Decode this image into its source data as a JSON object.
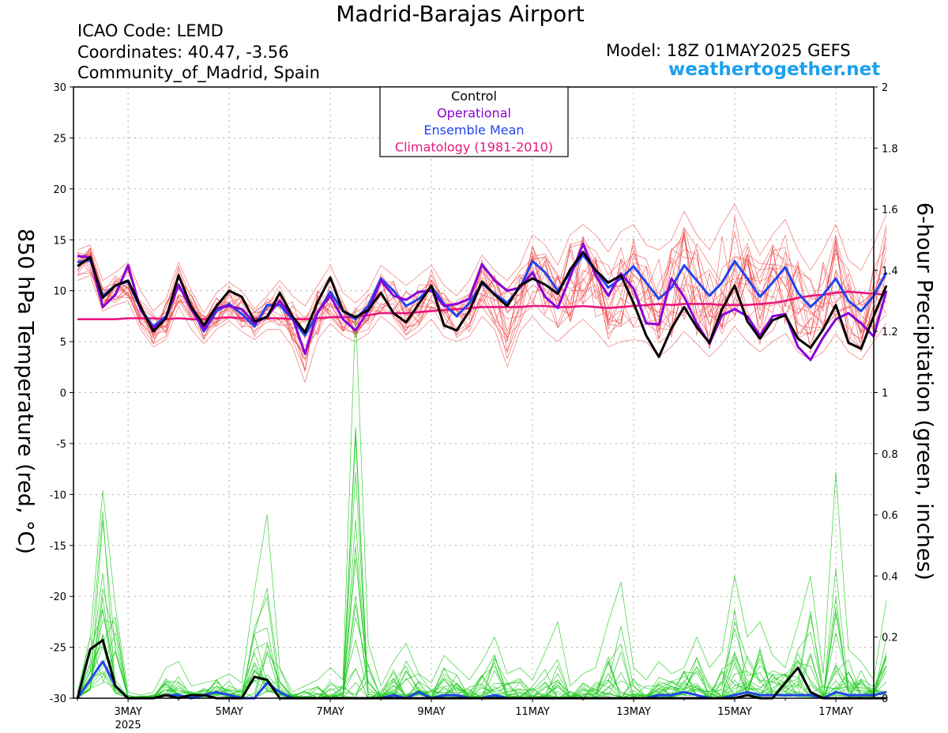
{
  "header": {
    "title": "Madrid-Barajas Airport",
    "icao": "ICAO Code: LEMD",
    "coordinates": "Coordinates: 40.47, -3.56",
    "region": "Community_of_Madrid, Spain",
    "model": "Model: 18Z 01MAY2025 GEFS",
    "website": "weathertogether.net"
  },
  "colors": {
    "control": "#000000",
    "operational": "#8a00d6",
    "ensemble_mean": "#2244ee",
    "climatology": "#e8157f",
    "temp_members": "#ee4444",
    "precip_members": "#22cc22",
    "website": "#1ba0ee",
    "grid": "#aaaaaa"
  },
  "chart_data": {
    "type": "line",
    "xlabel": "",
    "ylabel": "850 hPa Temperature (red, °C)",
    "ylabel_right": "6-hour Precipitation (green, inches)",
    "x_tick_labels": [
      "3MAY",
      "5MAY",
      "7MAY",
      "9MAY",
      "11MAY",
      "13MAY",
      "15MAY",
      "17MAY"
    ],
    "x_subtitle": "2025",
    "xlim_days": [
      1.92,
      17.75
    ],
    "ylim": [
      -30,
      30
    ],
    "yticks": [
      -30,
      -25,
      -20,
      -15,
      -10,
      -5,
      0,
      5,
      10,
      15,
      20,
      25,
      30
    ],
    "ylim_right": [
      0,
      2
    ],
    "yticks_right": [
      0,
      0.2,
      0.4,
      0.6,
      0.8,
      1,
      1.2,
      1.4,
      1.6,
      1.8,
      2
    ],
    "grid": true,
    "legend_position": "top-center",
    "legend": [
      "Control",
      "Operational",
      "Ensemble Mean",
      "Climatology (1981-2010)"
    ],
    "time_step_hours": 6,
    "x_start_day": 2.0,
    "temperature": {
      "control": [
        12.4,
        13.3,
        9.3,
        10.5,
        11.0,
        8.4,
        6.0,
        7.3,
        11.5,
        8.4,
        6.6,
        8.5,
        10.0,
        9.4,
        7.0,
        7.4,
        9.8,
        7.5,
        5.9,
        8.9,
        11.3,
        8.0,
        7.4,
        8.1,
        9.8,
        7.8,
        6.9,
        8.7,
        10.5,
        6.6,
        6.1,
        8.0,
        10.9,
        9.6,
        8.5,
        10.5,
        11.2,
        10.6,
        9.7,
        12.1,
        13.8,
        12.0,
        10.8,
        11.5,
        8.8,
        5.6,
        3.5,
        6.3,
        8.4,
        6.4,
        4.9,
        8.2,
        10.5,
        7.0,
        5.3,
        7.1,
        7.6,
        5.3,
        4.4,
        6.2,
        8.6,
        4.9,
        4.3,
        7.5,
        10.5
      ],
      "operational": [
        13.4,
        13.3,
        8.4,
        9.6,
        12.5,
        8.1,
        6.3,
        7.3,
        10.6,
        8.2,
        6.2,
        8.3,
        8.5,
        8.2,
        6.8,
        7.5,
        9.0,
        7.4,
        3.8,
        7.9,
        9.5,
        7.2,
        6.1,
        8.0,
        11.0,
        9.5,
        9.1,
        9.9,
        10.0,
        8.5,
        8.7,
        9.2,
        12.6,
        11.0,
        10.0,
        10.3,
        11.8,
        9.4,
        8.3,
        11.4,
        14.6,
        11.5,
        9.5,
        11.7,
        10.2,
        6.8,
        6.7,
        11.2,
        9.4,
        6.8,
        4.8,
        7.6,
        8.2,
        7.5,
        5.6,
        7.5,
        7.7,
        4.5,
        3.2,
        5.4,
        7.2,
        7.8,
        6.8,
        5.5,
        10.0
      ],
      "ensemble_mean": [
        12.8,
        13.0,
        9.5,
        10.5,
        10.9,
        8.2,
        6.5,
        7.5,
        10.5,
        8.4,
        6.0,
        8.0,
        8.7,
        7.7,
        6.5,
        8.6,
        8.6,
        7.2,
        5.6,
        7.8,
        9.9,
        8.0,
        7.2,
        8.5,
        11.2,
        10.0,
        8.5,
        9.2,
        10.4,
        8.7,
        7.5,
        8.8,
        10.7,
        9.7,
        8.8,
        10.3,
        12.9,
        11.8,
        10.0,
        11.8,
        13.5,
        12.0,
        10.3,
        11.2,
        12.4,
        10.8,
        9.2,
        10.3,
        12.5,
        11.0,
        9.5,
        10.8,
        12.9,
        11.2,
        9.4,
        10.8,
        12.3,
        9.8,
        8.4,
        9.6,
        11.2,
        9.0,
        8.0,
        9.5,
        11.8
      ],
      "climatology": [
        7.2,
        7.2,
        7.2,
        7.2,
        7.3,
        7.3,
        7.3,
        7.2,
        7.3,
        7.2,
        7.2,
        7.3,
        7.4,
        7.3,
        7.3,
        7.3,
        7.3,
        7.2,
        7.2,
        7.3,
        7.4,
        7.4,
        7.4,
        7.6,
        7.8,
        7.8,
        7.8,
        7.9,
        8.0,
        8.1,
        8.2,
        8.3,
        8.4,
        8.4,
        8.4,
        8.4,
        8.5,
        8.5,
        8.4,
        8.4,
        8.5,
        8.4,
        8.3,
        8.4,
        8.5,
        8.6,
        8.7,
        8.6,
        8.7,
        8.7,
        8.7,
        8.6,
        8.6,
        8.6,
        8.7,
        8.8,
        9.0,
        9.3,
        9.5,
        9.6,
        9.8,
        9.9,
        9.8,
        9.7,
        9.6
      ],
      "members_min": [
        11.0,
        11.5,
        8.0,
        8.6,
        9.0,
        6.2,
        4.5,
        5.2,
        8.5,
        6.2,
        4.8,
        6.2,
        7.0,
        6.0,
        5.2,
        6.2,
        6.2,
        4.5,
        1.0,
        5.2,
        6.8,
        5.6,
        5.0,
        5.8,
        7.5,
        6.5,
        5.2,
        6.0,
        7.2,
        5.5,
        5.0,
        5.5,
        7.5,
        6.2,
        2.5,
        6.0,
        7.5,
        6.0,
        5.0,
        6.2,
        7.2,
        6.0,
        4.5,
        5.0,
        5.2,
        5.0,
        3.5,
        4.5,
        6.0,
        4.8,
        3.5,
        4.8,
        6.5,
        5.0,
        4.0,
        5.0,
        5.8,
        4.0,
        3.2,
        4.0,
        5.8,
        4.0,
        3.2,
        5.0,
        6.8
      ],
      "members_max": [
        14.0,
        14.5,
        11.0,
        11.8,
        12.8,
        10.0,
        8.0,
        9.2,
        12.8,
        10.0,
        7.8,
        9.8,
        10.8,
        10.0,
        8.2,
        9.5,
        11.0,
        9.5,
        8.5,
        10.5,
        12.5,
        9.8,
        8.8,
        10.0,
        12.5,
        11.5,
        10.5,
        11.5,
        12.5,
        10.5,
        9.5,
        11.0,
        13.5,
        12.0,
        11.0,
        12.5,
        15.5,
        14.5,
        12.5,
        15.5,
        16.5,
        15.5,
        13.8,
        15.8,
        16.5,
        14.5,
        14.0,
        15.0,
        17.8,
        15.5,
        14.0,
        16.5,
        18.5,
        16.0,
        13.5,
        15.5,
        17.0,
        14.0,
        12.0,
        14.0,
        16.5,
        13.0,
        12.0,
        14.5,
        17.5
      ]
    },
    "precipitation_in": {
      "control": [
        0.0,
        0.16,
        0.19,
        0.04,
        0.0,
        0.0,
        0.0,
        0.01,
        0.0,
        0.01,
        0.01,
        0.0,
        0.0,
        0.0,
        0.07,
        0.06,
        0.0,
        0.0,
        0.0,
        0.0,
        0.0,
        0.0,
        0.0,
        0.0,
        0.0,
        0.0,
        0.0,
        0.0,
        0.0,
        0.0,
        0.0,
        0.0,
        0.0,
        0.0,
        0.0,
        0.0,
        0.0,
        0.0,
        0.0,
        0.0,
        0.0,
        0.0,
        0.0,
        0.0,
        0.0,
        0.0,
        0.0,
        0.0,
        0.0,
        0.0,
        0.0,
        0.0,
        0.0,
        0.01,
        0.0,
        0.0,
        0.05,
        0.1,
        0.02,
        0.0,
        0.0,
        0.0,
        0.0,
        0.0,
        0.0
      ],
      "ensemble_mean": [
        0.0,
        0.06,
        0.12,
        0.04,
        0.0,
        0.0,
        0.0,
        0.01,
        0.01,
        0.0,
        0.01,
        0.02,
        0.01,
        0.0,
        0.0,
        0.05,
        0.02,
        0.0,
        0.0,
        0.0,
        0.0,
        0.0,
        0.0,
        0.0,
        0.0,
        0.01,
        0.0,
        0.02,
        0.0,
        0.01,
        0.01,
        0.0,
        0.0,
        0.01,
        0.0,
        0.0,
        0.0,
        0.0,
        0.0,
        0.0,
        0.0,
        0.0,
        0.0,
        0.0,
        0.0,
        0.0,
        0.01,
        0.01,
        0.02,
        0.01,
        0.0,
        0.0,
        0.01,
        0.02,
        0.01,
        0.01,
        0.01,
        0.01,
        0.01,
        0.0,
        0.02,
        0.01,
        0.01,
        0.01,
        0.02
      ],
      "members_max": [
        0.02,
        0.2,
        0.68,
        0.3,
        0.02,
        0.01,
        0.02,
        0.1,
        0.12,
        0.04,
        0.05,
        0.06,
        0.08,
        0.05,
        0.35,
        0.6,
        0.1,
        0.02,
        0.04,
        0.06,
        0.1,
        0.06,
        1.27,
        0.18,
        0.04,
        0.12,
        0.18,
        0.08,
        0.05,
        0.14,
        0.1,
        0.06,
        0.12,
        0.2,
        0.08,
        0.1,
        0.06,
        0.15,
        0.25,
        0.04,
        0.08,
        0.1,
        0.25,
        0.38,
        0.1,
        0.06,
        0.12,
        0.08,
        0.1,
        0.2,
        0.1,
        0.15,
        0.4,
        0.2,
        0.25,
        0.14,
        0.1,
        0.24,
        0.4,
        0.08,
        0.74,
        0.16,
        0.12,
        0.06,
        0.32
      ]
    }
  }
}
